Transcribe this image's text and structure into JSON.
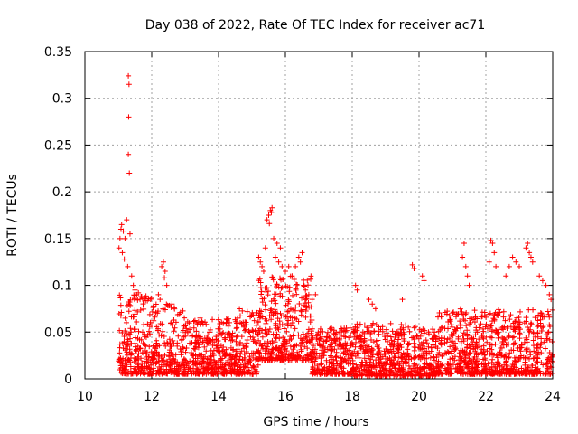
{
  "chart_data": {
    "type": "scatter",
    "title": "Day 038 of 2022, Rate Of TEC Index for receiver ac71",
    "xlabel": "GPS time / hours",
    "ylabel": "ROTI / TECUs",
    "xlim": [
      10,
      24
    ],
    "ylim": [
      0,
      0.35
    ],
    "xticks": [
      10,
      12,
      14,
      16,
      18,
      20,
      22,
      24
    ],
    "xtick_labels": [
      "10",
      "12",
      "14",
      "16",
      "18",
      "20",
      "22",
      "24"
    ],
    "yticks": [
      0,
      0.05,
      0.1,
      0.15,
      0.2,
      0.25,
      0.3,
      0.35
    ],
    "ytick_labels": [
      "0",
      "0.05",
      "0.1",
      "0.15",
      "0.2",
      "0.25",
      "0.3",
      "0.35"
    ],
    "grid": true,
    "marker": "+",
    "color": "#ff0000",
    "series": [
      {
        "name": "ROTI",
        "points": [
          [
            11.3,
            0.324
          ],
          [
            11.32,
            0.315
          ],
          [
            11.31,
            0.28
          ],
          [
            11.3,
            0.24
          ],
          [
            11.33,
            0.22
          ],
          [
            11.02,
            0.14
          ],
          [
            11.05,
            0.15
          ],
          [
            11.08,
            0.16
          ],
          [
            11.1,
            0.165
          ],
          [
            11.15,
            0.158
          ],
          [
            11.2,
            0.15
          ],
          [
            11.25,
            0.17
          ],
          [
            11.35,
            0.155
          ],
          [
            11.12,
            0.135
          ],
          [
            11.18,
            0.128
          ],
          [
            11.28,
            0.12
          ],
          [
            11.4,
            0.11
          ],
          [
            11.45,
            0.1
          ],
          [
            11.5,
            0.095
          ],
          [
            11.55,
            0.09
          ],
          [
            11.6,
            0.092
          ],
          [
            11.65,
            0.085
          ],
          [
            11.7,
            0.088
          ],
          [
            12.3,
            0.12
          ],
          [
            12.35,
            0.125
          ],
          [
            12.4,
            0.115
          ],
          [
            12.45,
            0.1
          ],
          [
            12.38,
            0.108
          ],
          [
            12.2,
            0.09
          ],
          [
            12.25,
            0.085
          ],
          [
            15.45,
            0.17
          ],
          [
            15.5,
            0.175
          ],
          [
            15.55,
            0.18
          ],
          [
            15.6,
            0.183
          ],
          [
            15.58,
            0.178
          ],
          [
            15.52,
            0.166
          ],
          [
            15.2,
            0.13
          ],
          [
            15.25,
            0.125
          ],
          [
            15.3,
            0.12
          ],
          [
            15.35,
            0.115
          ],
          [
            15.7,
            0.13
          ],
          [
            15.8,
            0.125
          ],
          [
            15.9,
            0.12
          ],
          [
            16.0,
            0.115
          ],
          [
            16.1,
            0.12
          ],
          [
            16.2,
            0.11
          ],
          [
            16.3,
            0.12
          ],
          [
            16.4,
            0.13
          ],
          [
            16.5,
            0.135
          ],
          [
            16.45,
            0.125
          ],
          [
            16.55,
            0.1
          ],
          [
            16.6,
            0.095
          ],
          [
            16.7,
            0.09
          ],
          [
            16.8,
            0.085
          ],
          [
            16.9,
            0.09
          ],
          [
            15.4,
            0.14
          ],
          [
            15.65,
            0.15
          ],
          [
            15.75,
            0.145
          ],
          [
            15.85,
            0.14
          ],
          [
            18.1,
            0.1
          ],
          [
            18.15,
            0.095
          ],
          [
            18.5,
            0.085
          ],
          [
            18.6,
            0.08
          ],
          [
            18.7,
            0.075
          ],
          [
            19.5,
            0.085
          ],
          [
            19.8,
            0.122
          ],
          [
            19.85,
            0.118
          ],
          [
            20.1,
            0.11
          ],
          [
            20.15,
            0.105
          ],
          [
            21.3,
            0.13
          ],
          [
            21.35,
            0.145
          ],
          [
            21.4,
            0.12
          ],
          [
            21.45,
            0.11
          ],
          [
            21.5,
            0.1
          ],
          [
            22.15,
            0.148
          ],
          [
            22.2,
            0.145
          ],
          [
            22.25,
            0.135
          ],
          [
            22.1,
            0.125
          ],
          [
            22.3,
            0.12
          ],
          [
            22.6,
            0.11
          ],
          [
            22.7,
            0.12
          ],
          [
            22.8,
            0.13
          ],
          [
            22.9,
            0.125
          ],
          [
            23.0,
            0.12
          ],
          [
            23.2,
            0.14
          ],
          [
            23.25,
            0.145
          ],
          [
            23.3,
            0.135
          ],
          [
            23.35,
            0.13
          ],
          [
            23.4,
            0.125
          ],
          [
            23.6,
            0.11
          ],
          [
            23.7,
            0.105
          ],
          [
            23.8,
            0.1
          ],
          [
            23.9,
            0.09
          ],
          [
            23.95,
            0.085
          ]
        ],
        "dense_bands": [
          {
            "x_range": [
              11.0,
              12.0
            ],
            "y_range": [
              0.005,
              0.09
            ]
          },
          {
            "x_range": [
              12.0,
              13.0
            ],
            "y_range": [
              0.005,
              0.08
            ]
          },
          {
            "x_range": [
              13.0,
              14.5
            ],
            "y_range": [
              0.005,
              0.065
            ]
          },
          {
            "x_range": [
              14.5,
              15.2
            ],
            "y_range": [
              0.005,
              0.075
            ]
          },
          {
            "x_range": [
              15.2,
              16.8
            ],
            "y_range": [
              0.02,
              0.11
            ]
          },
          {
            "x_range": [
              16.8,
              18.0
            ],
            "y_range": [
              0.005,
              0.055
            ]
          },
          {
            "x_range": [
              18.0,
              20.5
            ],
            "y_range": [
              0.003,
              0.06
            ]
          },
          {
            "x_range": [
              20.5,
              24.0
            ],
            "y_range": [
              0.005,
              0.075
            ]
          }
        ]
      }
    ]
  }
}
